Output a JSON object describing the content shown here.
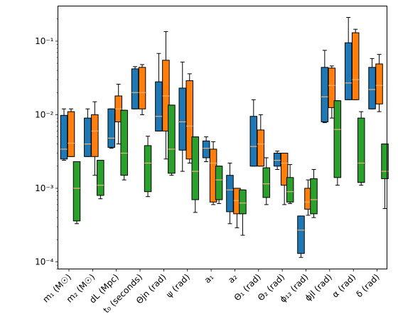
{
  "chart_data": {
    "type": "box",
    "yscale": "log",
    "ylim": [
      8e-05,
      0.3
    ],
    "yticks": [
      {
        "value": 0.1,
        "label": "10⁻¹"
      },
      {
        "value": 0.01,
        "label": "10⁻²"
      },
      {
        "value": 0.001,
        "label": "10⁻³"
      },
      {
        "value": 0.0001,
        "label": "10⁻⁴"
      }
    ],
    "categories": [
      "m₁ (M☉)",
      "m₂ (M☉)",
      "dL (Mpc)",
      "t₀ (seconds)",
      "Θjn (rad)",
      "ψ (rad)",
      "a₁",
      "a₂",
      "Θ₁ (rad)",
      "Θ₂ (rad)",
      "ϕ₁₂ (rad)",
      "ϕjl (rad)",
      "α (rad)",
      "δ (rad)"
    ],
    "series": [
      {
        "color": "#1f77b4",
        "boxes": [
          {
            "whislo": 0.0024,
            "q1": 0.0025,
            "med": 0.0034,
            "q3": 0.0098,
            "whishi": 0.012
          },
          {
            "whislo": 0.0027,
            "q1": 0.0027,
            "med": 0.004,
            "q3": 0.009,
            "whishi": 0.012
          },
          {
            "whislo": 0.0035,
            "q1": 0.0036,
            "med": 0.0048,
            "q3": 0.012,
            "whishi": 0.012
          },
          {
            "whislo": 0.012,
            "q1": 0.012,
            "med": 0.02,
            "q3": 0.042,
            "whishi": 0.045
          },
          {
            "whislo": 0.006,
            "q1": 0.006,
            "med": 0.0095,
            "q3": 0.028,
            "whishi": 0.068
          },
          {
            "whislo": 0.0017,
            "q1": 0.0033,
            "med": 0.008,
            "q3": 0.023,
            "whishi": 0.052
          },
          {
            "whislo": 0.0023,
            "q1": 0.0026,
            "med": 0.0035,
            "q3": 0.0044,
            "whishi": 0.005
          },
          {
            "whislo": 0.00033,
            "q1": 0.00048,
            "med": 0.00095,
            "q3": 0.0015,
            "whishi": 0.0022
          },
          {
            "whislo": 0.002,
            "q1": 0.002,
            "med": 0.0037,
            "q3": 0.0095,
            "whishi": 0.016
          },
          {
            "whislo": 0.0018,
            "q1": 0.002,
            "med": 0.0024,
            "q3": 0.003,
            "whishi": 0.0032
          },
          {
            "whislo": 0.000115,
            "q1": 0.00013,
            "med": 0.00027,
            "q3": 0.00042,
            "whishi": 0.00042
          },
          {
            "whislo": 0.0078,
            "q1": 0.008,
            "med": 0.0175,
            "q3": 0.044,
            "whishi": 0.075
          },
          {
            "whislo": 0.016,
            "q1": 0.016,
            "med": 0.027,
            "q3": 0.095,
            "whishi": 0.21
          },
          {
            "whislo": 0.012,
            "q1": 0.012,
            "med": 0.022,
            "q3": 0.044,
            "whishi": 0.058
          }
        ]
      },
      {
        "color": "#ff7f0e",
        "boxes": [
          {
            "whislo": 0.0027,
            "q1": 0.0027,
            "med": 0.0041,
            "q3": 0.011,
            "whishi": 0.012
          },
          {
            "whislo": 0.0015,
            "q1": 0.0027,
            "med": 0.006,
            "q3": 0.01,
            "whishi": 0.015
          },
          {
            "whislo": 0.004,
            "q1": 0.008,
            "med": 0.012,
            "q3": 0.018,
            "whishi": 0.026
          },
          {
            "whislo": 0.01,
            "q1": 0.012,
            "med": 0.02,
            "q3": 0.044,
            "whishi": 0.048
          },
          {
            "whislo": 0.0025,
            "q1": 0.006,
            "med": 0.018,
            "q3": 0.055,
            "whishi": 0.135
          },
          {
            "whislo": 0.0022,
            "q1": 0.0025,
            "med": 0.007,
            "q3": 0.029,
            "whishi": 0.036
          },
          {
            "whislo": 0.0006,
            "q1": 0.00065,
            "med": 0.0022,
            "q3": 0.0034,
            "whishi": 0.0043
          },
          {
            "whislo": 0.00029,
            "q1": 0.00045,
            "med": 0.00068,
            "q3": 0.001,
            "whishi": 0.001
          },
          {
            "whislo": 0.002,
            "q1": 0.002,
            "med": 0.004,
            "q3": 0.0062,
            "whishi": 0.01
          },
          {
            "whislo": 0.0006,
            "q1": 0.0011,
            "med": 0.0022,
            "q3": 0.003,
            "whishi": 0.003
          },
          {
            "whislo": 0.00043,
            "q1": 0.00052,
            "med": 0.00065,
            "q3": 0.001,
            "whishi": 0.0013
          },
          {
            "whislo": 0.009,
            "q1": 0.0125,
            "med": 0.025,
            "q3": 0.043,
            "whishi": 0.046
          },
          {
            "whislo": 0.016,
            "q1": 0.016,
            "med": 0.03,
            "q3": 0.13,
            "whishi": 0.145
          },
          {
            "whislo": 0.011,
            "q1": 0.014,
            "med": 0.025,
            "q3": 0.049,
            "whishi": 0.066
          }
        ]
      },
      {
        "color": "#2ca02c",
        "boxes": [
          {
            "whislo": 0.00033,
            "q1": 0.00036,
            "med": 0.001,
            "q3": 0.0023,
            "whishi": 0.0023
          },
          {
            "whislo": 0.00072,
            "q1": 0.0008,
            "med": 0.0011,
            "q3": 0.0024,
            "whishi": 0.0024
          },
          {
            "whislo": 0.0013,
            "q1": 0.0015,
            "med": 0.003,
            "q3": 0.0115,
            "whishi": 0.0115
          },
          {
            "whislo": 0.00077,
            "q1": 0.0009,
            "med": 0.0022,
            "q3": 0.0038,
            "whishi": 0.0051
          },
          {
            "whislo": 0.0015,
            "q1": 0.0016,
            "med": 0.0034,
            "q3": 0.0135,
            "whishi": 0.0135
          },
          {
            "whislo": 0.00047,
            "q1": 0.0007,
            "med": 0.0017,
            "q3": 0.005,
            "whishi": 0.005
          },
          {
            "whislo": 0.00062,
            "q1": 0.0007,
            "med": 0.0013,
            "q3": 0.002,
            "whishi": 0.002
          },
          {
            "whislo": 0.00023,
            "q1": 0.00045,
            "med": 0.00063,
            "q3": 0.00095,
            "whishi": 0.00095
          },
          {
            "whislo": 0.0006,
            "q1": 0.00075,
            "med": 0.00115,
            "q3": 0.0019,
            "whishi": 0.0026
          },
          {
            "whislo": 0.00062,
            "q1": 0.00065,
            "med": 0.0009,
            "q3": 0.0014,
            "whishi": 0.0021
          },
          {
            "whislo": 0.0004,
            "q1": 0.00045,
            "med": 0.0007,
            "q3": 0.00135,
            "whishi": 0.0018
          },
          {
            "whislo": 0.0011,
            "q1": 0.0014,
            "med": 0.0063,
            "q3": 0.0155,
            "whishi": 0.0155
          },
          {
            "whislo": 0.0011,
            "q1": 0.0012,
            "med": 0.0022,
            "q3": 0.009,
            "whishi": 0.011
          },
          {
            "whislo": 0.00053,
            "q1": 0.00135,
            "med": 0.0017,
            "q3": 0.004,
            "whishi": 0.004
          }
        ]
      }
    ],
    "median_color": "#f0b27a"
  }
}
